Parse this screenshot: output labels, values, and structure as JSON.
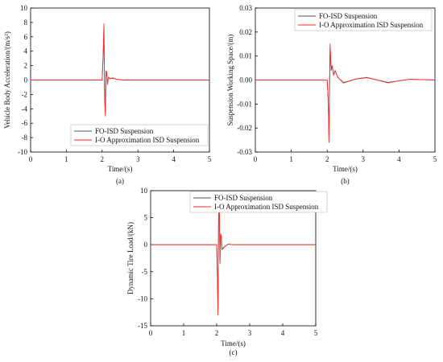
{
  "colors": {
    "fo": "#555555",
    "io": "#ff2a2a",
    "axis": "#000000"
  },
  "chart_data": [
    {
      "id": "a",
      "type": "line",
      "caption": "(a)",
      "xlabel": "Time/(s)",
      "ylabel": "Vehicle Body Acceleration/(m/s²)",
      "xlim": [
        0,
        5
      ],
      "ylim": [
        -10,
        10
      ],
      "xticks": [
        "0",
        "1",
        "2",
        "3",
        "4",
        "5"
      ],
      "yticks": [
        "-10",
        "-8",
        "-6",
        "-4",
        "-2",
        "0",
        "2",
        "4",
        "6",
        "8",
        "10"
      ],
      "grid": false,
      "legend": "bottom-left",
      "series": [
        {
          "name": "FO-ISD Suspension",
          "x": [
            0,
            2.0,
            2.03,
            2.05,
            2.07,
            2.09,
            2.11,
            2.13,
            2.15,
            2.18,
            2.22,
            2.3,
            2.4,
            2.6,
            3.0,
            5.0
          ],
          "y": [
            0,
            0,
            3.5,
            7.5,
            -2.5,
            -4.5,
            1.3,
            1.0,
            -0.6,
            0.4,
            0.2,
            0.25,
            0.1,
            0.0,
            0.0,
            0.0
          ]
        },
        {
          "name": "I-O Approximation ISD Suspension",
          "x": [
            0,
            2.0,
            2.03,
            2.05,
            2.07,
            2.09,
            2.11,
            2.13,
            2.15,
            2.18,
            2.22,
            2.3,
            2.4,
            2.6,
            3.0,
            5.0
          ],
          "y": [
            0,
            0,
            3.8,
            7.8,
            -2.8,
            -5.0,
            1.2,
            1.1,
            -0.5,
            0.4,
            0.2,
            0.3,
            0.1,
            0.0,
            0.0,
            0.0
          ]
        }
      ]
    },
    {
      "id": "b",
      "type": "line",
      "caption": "(b)",
      "xlabel": "Time/(s)",
      "ylabel": "Suspension Working Space/(m)",
      "xlim": [
        0,
        5
      ],
      "ylim": [
        -0.03,
        0.03
      ],
      "xticks": [
        "0",
        "1",
        "2",
        "3",
        "4",
        "5"
      ],
      "yticks": [
        "-0.03",
        "-0.02",
        "-0.01",
        "0.00",
        "0.01",
        "0.02",
        "0.03"
      ],
      "grid": false,
      "legend": "top-right",
      "series": [
        {
          "name": "FO-ISD Suspension",
          "x": [
            0,
            2.0,
            2.03,
            2.05,
            2.08,
            2.11,
            2.14,
            2.18,
            2.22,
            2.3,
            2.45,
            2.6,
            2.8,
            3.1,
            3.4,
            3.7,
            4.0,
            4.3,
            4.6,
            5.0
          ],
          "y": [
            0,
            0,
            -0.008,
            -0.024,
            0.013,
            0.004,
            0.006,
            0.002,
            0.004,
            0.001,
            -0.001,
            -0.0005,
            0.0004,
            0.001,
            0.0,
            -0.001,
            -0.0003,
            0.0003,
            0.0002,
            0.0
          ]
        },
        {
          "name": "I-O Approximation ISD Suspension",
          "x": [
            0,
            2.0,
            2.03,
            2.05,
            2.08,
            2.11,
            2.14,
            2.18,
            2.22,
            2.3,
            2.45,
            2.6,
            2.8,
            3.1,
            3.4,
            3.7,
            4.0,
            4.3,
            4.6,
            5.0
          ],
          "y": [
            0,
            0,
            -0.009,
            -0.026,
            0.015,
            0.005,
            0.006,
            0.002,
            0.004,
            0.001,
            -0.0012,
            -0.0005,
            0.0005,
            0.0011,
            0.0,
            -0.0012,
            -0.0003,
            0.0003,
            0.0002,
            0.0
          ]
        }
      ]
    },
    {
      "id": "c",
      "type": "line",
      "caption": "(c)",
      "xlabel": "Time/(s)",
      "ylabel": "Dynamic Tire Load/(kN)",
      "xlim": [
        0,
        5
      ],
      "ylim": [
        -15,
        10
      ],
      "xticks": [
        "0",
        "1",
        "2",
        "3",
        "4",
        "5"
      ],
      "yticks": [
        "-15",
        "-10",
        "-5",
        "0",
        "5",
        "10"
      ],
      "grid": false,
      "legend": "top-left",
      "series": [
        {
          "name": "FO-ISD Suspension",
          "x": [
            0,
            2.0,
            2.02,
            2.04,
            2.06,
            2.08,
            2.1,
            2.12,
            2.14,
            2.16,
            2.2,
            2.25,
            2.35,
            2.5,
            3.0,
            5.0
          ],
          "y": [
            0,
            0,
            -5,
            -12,
            6,
            7.5,
            -3,
            1.8,
            1.5,
            -0.8,
            -0.6,
            -0.3,
            0.1,
            0.0,
            0.0,
            0.0
          ]
        },
        {
          "name": "I-O Approximation ISD Suspension",
          "x": [
            0,
            2.0,
            2.02,
            2.04,
            2.06,
            2.08,
            2.1,
            2.12,
            2.14,
            2.16,
            2.2,
            2.25,
            2.35,
            2.5,
            3.0,
            5.0
          ],
          "y": [
            0,
            0,
            -5.5,
            -13,
            6.5,
            8.2,
            -3.5,
            2.0,
            1.6,
            -0.9,
            -0.7,
            -0.3,
            0.1,
            0.0,
            0.0,
            0.0
          ]
        }
      ]
    }
  ]
}
